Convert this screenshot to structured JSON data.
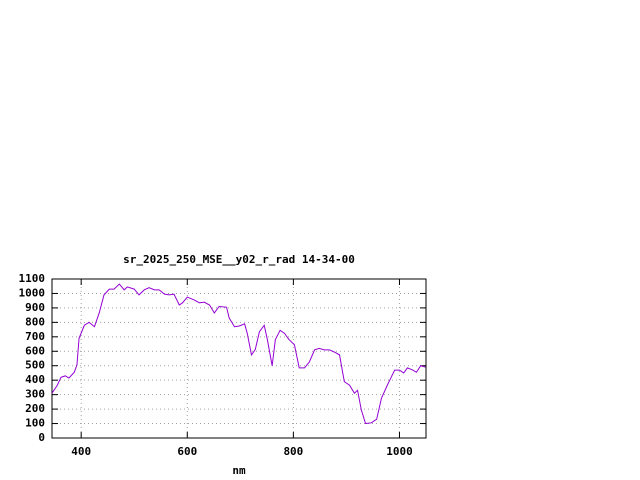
{
  "chart_data": {
    "type": "line",
    "title": "sr_2025_250_MSE__y02_r_rad 14-34-00",
    "x_label": "nm",
    "x": [
      345,
      355,
      362,
      370,
      377,
      387,
      392,
      396,
      406,
      415,
      425,
      434,
      443,
      453,
      462,
      472,
      481,
      487,
      500,
      509,
      519,
      528,
      538,
      547,
      557,
      566,
      575,
      585,
      591,
      600,
      613,
      623,
      632,
      642,
      651,
      660,
      674,
      679,
      689,
      698,
      708,
      713,
      721,
      728,
      736,
      745,
      751,
      760,
      766,
      775,
      783,
      792,
      802,
      811,
      821,
      830,
      840,
      849,
      858,
      868,
      877,
      887,
      896,
      906,
      915,
      921,
      928,
      936,
      947,
      957,
      966,
      977,
      991,
      1000,
      1008,
      1015,
      1025,
      1032,
      1040,
      1049
    ],
    "series": [
      {
        "color": "#9400d3",
        "values": [
          310,
          365,
          420,
          430,
          415,
          455,
          505,
          690,
          780,
          800,
          770,
          865,
          990,
          1030,
          1030,
          1065,
          1025,
          1045,
          1030,
          990,
          1025,
          1040,
          1025,
          1025,
          995,
          990,
          995,
          920,
          935,
          975,
          955,
          935,
          940,
          920,
          865,
          910,
          905,
          830,
          770,
          775,
          790,
          725,
          575,
          610,
          735,
          780,
          680,
          500,
          680,
          745,
          725,
          680,
          645,
          485,
          485,
          525,
          610,
          620,
          610,
          610,
          595,
          575,
          390,
          365,
          310,
          330,
          195,
          100,
          105,
          130,
          275,
          365,
          470,
          470,
          450,
          485,
          470,
          455,
          500,
          490
        ]
      }
    ],
    "xlim": [
      345,
      1050
    ],
    "xticks": [
      400,
      600,
      800,
      1000
    ],
    "ylim": [
      0,
      1100
    ],
    "yticks": [
      0,
      100,
      200,
      300,
      400,
      500,
      600,
      700,
      800,
      900,
      1000,
      1100
    ],
    "grid": true
  }
}
